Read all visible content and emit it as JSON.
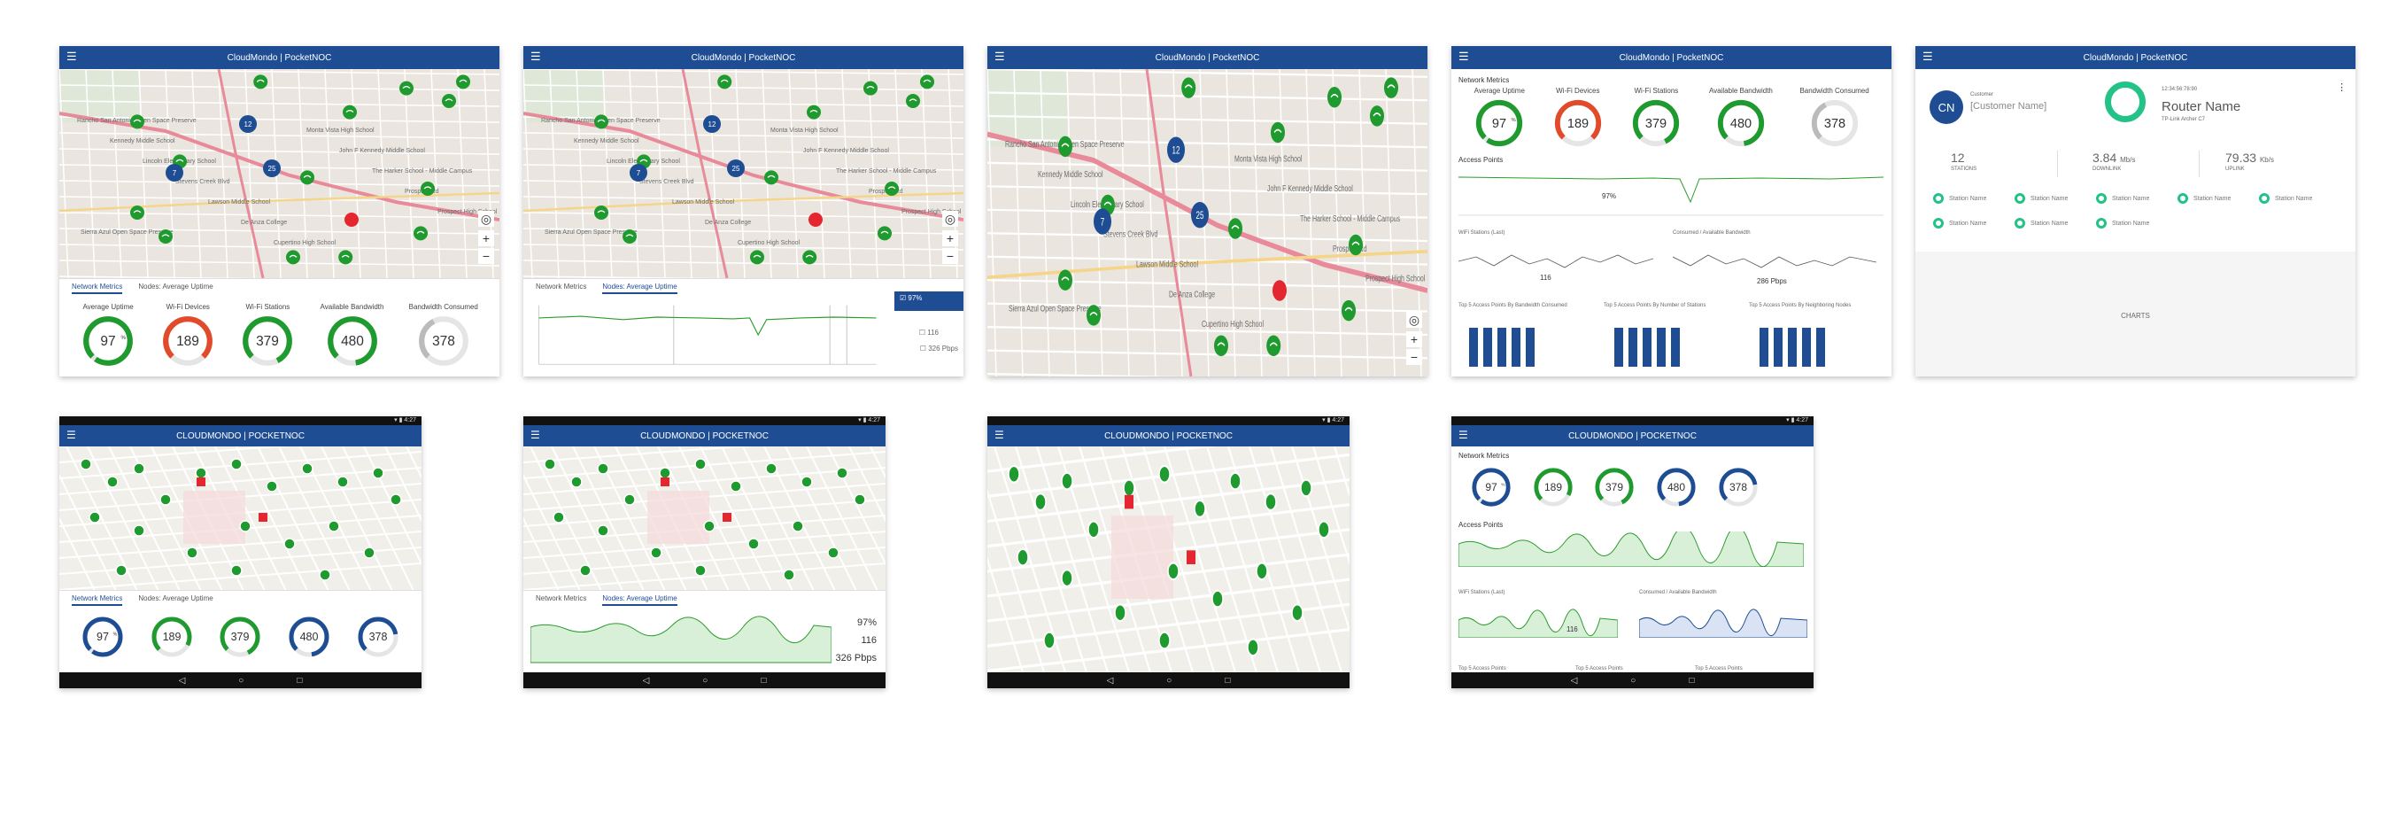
{
  "app": {
    "title": "CloudMondo | PocketNOC",
    "brand_left": "CLOUDMONDO",
    "brand_right": "POCKETNOC"
  },
  "map": {
    "labels": [
      "Rancho San Antonio Open Space Preserve",
      "Kennedy Middle School",
      "Lincoln Elementary School",
      "Stevens Creek Blvd",
      "Lawson Middle School",
      "De Anza College",
      "Cupertino High School",
      "Monta Vista High School",
      "John F Kennedy Middle School",
      "The Harker School - Middle Campus",
      "Prospect Rd",
      "Prospect High School",
      "Sierra Azul Open Space Preserve"
    ],
    "clusters": [
      "12",
      "7",
      "25"
    ],
    "zoom_in": "+",
    "zoom_out": "−"
  },
  "tabs": {
    "network": "Network Metrics",
    "nodes": "Nodes: Average Uptime"
  },
  "metrics": [
    {
      "label": "Average Uptime",
      "value": "97",
      "unit": "%",
      "sub": "",
      "color": "#1f9a2e",
      "fraction": 0.97
    },
    {
      "label": "Wi-Fi Devices",
      "value": "189",
      "unit": "",
      "sub": "",
      "color": "#e14b2b",
      "fraction": 0.75
    },
    {
      "label": "Wi-Fi Stations",
      "value": "379",
      "unit": "",
      "sub": "",
      "color": "#1f9a2e",
      "fraction": 0.8
    },
    {
      "label": "Available Bandwidth",
      "value": "480",
      "unit": "",
      "sub": "",
      "color": "#1f9a2e",
      "fraction": 0.85
    },
    {
      "label": "Bandwidth Consumed",
      "value": "378",
      "unit": "",
      "sub": "",
      "color": "#bbbbbb",
      "fraction": 0.3
    }
  ],
  "tablet_metrics": [
    {
      "value": "97",
      "unit": "%",
      "color": "#1e4d94",
      "fraction": 0.97
    },
    {
      "value": "189",
      "unit": "",
      "color": "#1f9a2e",
      "fraction": 0.7
    },
    {
      "value": "379",
      "unit": "",
      "color": "#1f9a2e",
      "fraction": 0.8
    },
    {
      "value": "480",
      "unit": "",
      "color": "#1e4d94",
      "fraction": 0.85
    },
    {
      "value": "378",
      "unit": "",
      "color": "#1e4d94",
      "fraction": 0.6
    }
  ],
  "uptime_panel": {
    "legend": "97%",
    "stations": "116",
    "bandwidth": "326 Pbps"
  },
  "dashboard": {
    "network_metrics": "Network Metrics",
    "access_points": "Access Points",
    "access_value": "97%",
    "wifi_stations": "WiFi Stations (Last)",
    "stations_value": "116",
    "consumed": "Consumed / Available Bandwidth",
    "consumed_value": "286 Pbps",
    "top5_a": "Top 5 Access Points By Bandwidth Consumed",
    "top5_b": "Top 5 Access Points By Number of Stations",
    "top5_c": "Top 5 Access Points By Neighboring Nodes"
  },
  "router": {
    "avatar": "CN",
    "customer_label": "Customer",
    "customer_name": "[Customer Name]",
    "router_name": "Router Name",
    "router_model": "TP-Link Archer C7",
    "mac": "12:34:56:78:90",
    "stations_value": "12",
    "stations_label": "STATIONS",
    "down_value": "3.84",
    "down_unit": "Mb/s",
    "down_label": "DOWNLINK",
    "up_value": "79.33",
    "up_unit": "Kb/s",
    "up_label": "UPLINK",
    "station_label": "Station Name",
    "charts": "CHARTS"
  },
  "tablet_dashboard": {
    "network_metrics": "Network Metrics",
    "access_points": "Access Points",
    "wifi_stations": "WiFi Stations (Last)",
    "stations_value": "116",
    "consumed": "Consumed / Available Bandwidth",
    "top5_a": "Top 5 Access Points",
    "top5_b": "Top 5 Access Points",
    "top5_c": "Top 5 Access Points"
  }
}
